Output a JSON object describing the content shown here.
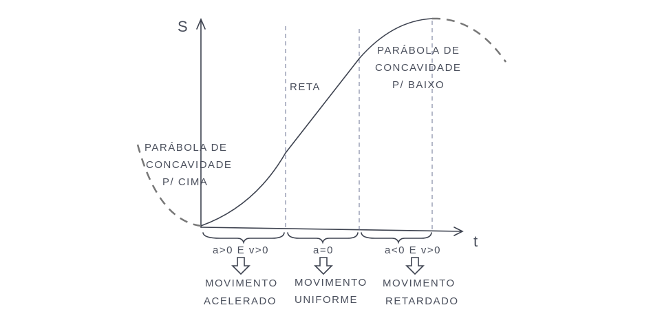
{
  "axes": {
    "y_label": "S",
    "x_label": "t"
  },
  "regions": [
    {
      "label": [
        "PARÁBOLA DE",
        "CONCAVIDADE",
        "P/ CIMA"
      ],
      "condition": "a>0 E v>0",
      "movement": [
        "MOVIMENTO",
        "ACELERADO"
      ]
    },
    {
      "label": [
        "RETA"
      ],
      "condition": "a=0",
      "movement": [
        "MOVIMENTO",
        "UNIFORME"
      ]
    },
    {
      "label": [
        "PARÁBOLA DE",
        "CONCAVIDADE",
        "P/ BAIXO"
      ],
      "condition": "a<0 E v>0",
      "movement": [
        "MOVIMENTO",
        "RETARDADO"
      ]
    }
  ]
}
